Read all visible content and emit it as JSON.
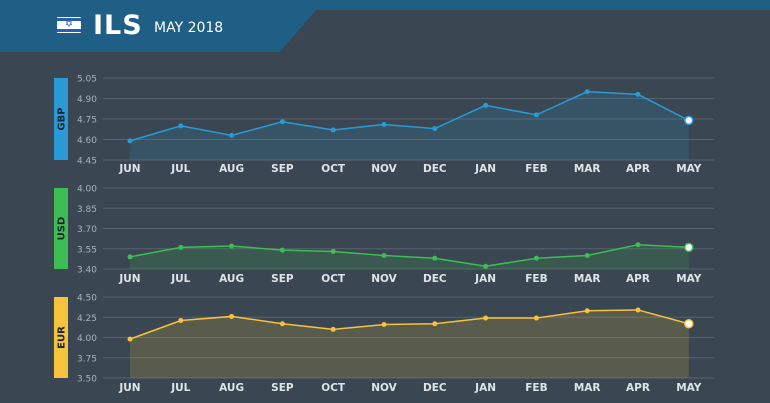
{
  "header": {
    "currency": "ILS",
    "period": "MAY 2018",
    "flag_icon": "israel-flag-icon"
  },
  "colors": {
    "background": "#3a4651",
    "header": "#1f5f85",
    "gbp": "#2a9ad6",
    "usd": "#3dbd54",
    "eur": "#f6c33d"
  },
  "chart_data": [
    {
      "type": "line",
      "series": [
        {
          "name": "GBP",
          "values": [
            4.59,
            4.7,
            4.63,
            4.73,
            4.67,
            4.71,
            4.68,
            4.85,
            4.78,
            4.95,
            4.93,
            4.74
          ]
        }
      ],
      "categories": [
        "JUN",
        "JUL",
        "AUG",
        "SEP",
        "OCT",
        "NOV",
        "DEC",
        "JAN",
        "FEB",
        "MAR",
        "APR",
        "MAY"
      ],
      "yticks": [
        "5.05",
        "4.90",
        "4.75",
        "4.60",
        "4.45"
      ],
      "ylim": [
        4.45,
        5.05
      ],
      "grid": true,
      "filled": true
    },
    {
      "type": "line",
      "series": [
        {
          "name": "USD",
          "values": [
            3.49,
            3.56,
            3.57,
            3.54,
            3.53,
            3.5,
            3.48,
            3.42,
            3.48,
            3.5,
            3.58,
            3.56
          ]
        }
      ],
      "categories": [
        "JUN",
        "JUL",
        "AUG",
        "SEP",
        "OCT",
        "NOV",
        "DEC",
        "JAN",
        "FEB",
        "MAR",
        "APR",
        "MAY"
      ],
      "yticks": [
        "4.00",
        "3.85",
        "3.70",
        "3.55",
        "3.40"
      ],
      "ylim": [
        3.4,
        4.0
      ],
      "grid": true,
      "filled": true
    },
    {
      "type": "line",
      "series": [
        {
          "name": "EUR",
          "values": [
            3.98,
            4.21,
            4.26,
            4.17,
            4.1,
            4.16,
            4.17,
            4.24,
            4.24,
            4.33,
            4.34,
            4.17
          ]
        }
      ],
      "categories": [
        "JUN",
        "JUL",
        "AUG",
        "SEP",
        "OCT",
        "NOV",
        "DEC",
        "JAN",
        "FEB",
        "MAR",
        "APR",
        "MAY"
      ],
      "yticks": [
        "4.50",
        "4.25",
        "4.00",
        "3.75",
        "3.50"
      ],
      "ylim": [
        3.5,
        4.5
      ],
      "grid": true,
      "filled": true
    }
  ]
}
